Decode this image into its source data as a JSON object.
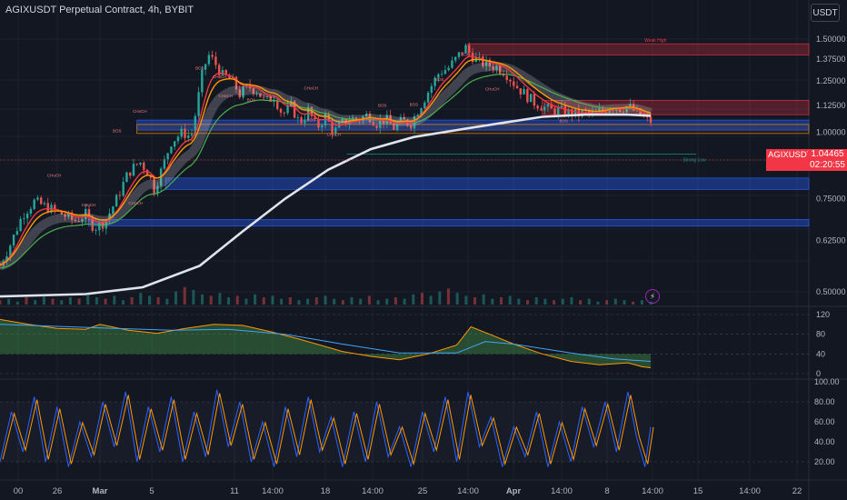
{
  "header": {
    "title": "AGIXUSDT Perpetual Contract, 4h, BYBIT",
    "currency": "USDT"
  },
  "price_badge": {
    "symbol": "AGIXUSDT.P",
    "price": "1.04465",
    "countdown": "02:20:55"
  },
  "colors": {
    "background": "#131722",
    "bull": "#26a69a",
    "bear": "#ef5350",
    "ema_red": "#f23645",
    "ema_orange": "#ff9800",
    "ema_green": "#4caf50",
    "ma_white": "#e0e3eb",
    "zone_red": "#f23645",
    "zone_blue": "#2962ff",
    "zone_orange": "#ff9800"
  },
  "chart_data": {
    "type": "candlestick",
    "interval": "4h",
    "price_axis": {
      "ticks": [
        1.5,
        1.375,
        1.25,
        1.125,
        1.0,
        0.875,
        0.75,
        0.625,
        0.5
      ],
      "tick_labels": [
        "1.50000",
        "1.37500",
        "1.25000",
        "1.12500",
        "1.00000",
        "0.87500",
        "0.75000",
        "0.62500",
        "0.50000"
      ],
      "log_scale": true
    },
    "time_axis": {
      "labels": [
        "00",
        "26",
        "Mar",
        "5",
        "11",
        "14:00",
        "18",
        "14:00",
        "25",
        "14:00",
        "Apr",
        "14:00",
        "8",
        "14:00",
        "15",
        "14:00",
        "22"
      ]
    },
    "price_path": [
      [
        0,
        0.56
      ],
      [
        8,
        0.62
      ],
      [
        16,
        0.7
      ],
      [
        24,
        0.74
      ],
      [
        34,
        0.72
      ],
      [
        44,
        0.7
      ],
      [
        52,
        0.68
      ],
      [
        60,
        0.7
      ],
      [
        66,
        0.66
      ],
      [
        74,
        0.68
      ],
      [
        82,
        0.75
      ],
      [
        90,
        0.84
      ],
      [
        98,
        0.88
      ],
      [
        104,
        0.84
      ],
      [
        108,
        0.78
      ],
      [
        114,
        0.86
      ],
      [
        120,
        0.96
      ],
      [
        128,
        1.0
      ],
      [
        134,
        0.98
      ],
      [
        138,
        1.12
      ],
      [
        142,
        1.3
      ],
      [
        146,
        1.4
      ],
      [
        150,
        1.36
      ],
      [
        156,
        1.28
      ],
      [
        162,
        1.26
      ],
      [
        168,
        1.18
      ],
      [
        174,
        1.22
      ],
      [
        180,
        1.2
      ],
      [
        186,
        1.14
      ],
      [
        192,
        1.17
      ],
      [
        198,
        1.08
      ],
      [
        204,
        1.12
      ],
      [
        210,
        1.04
      ],
      [
        216,
        1.1
      ],
      [
        222,
        1.02
      ],
      [
        228,
        1.07
      ],
      [
        234,
        1.0
      ],
      [
        240,
        1.04
      ],
      [
        246,
        1.06
      ],
      [
        252,
        1.06
      ],
      [
        258,
        1.08
      ],
      [
        264,
        1.04
      ],
      [
        270,
        1.06
      ],
      [
        276,
        1.02
      ],
      [
        282,
        1.05
      ],
      [
        288,
        1.04
      ],
      [
        296,
        1.14
      ],
      [
        302,
        1.22
      ],
      [
        308,
        1.3
      ],
      [
        314,
        1.32
      ],
      [
        320,
        1.38
      ],
      [
        326,
        1.45
      ],
      [
        330,
        1.4
      ],
      [
        336,
        1.36
      ],
      [
        342,
        1.34
      ],
      [
        348,
        1.33
      ],
      [
        354,
        1.3
      ],
      [
        358,
        1.26
      ],
      [
        362,
        1.22
      ],
      [
        368,
        1.18
      ],
      [
        374,
        1.14
      ],
      [
        380,
        1.12
      ],
      [
        386,
        1.1
      ],
      [
        392,
        1.1
      ],
      [
        398,
        1.09
      ],
      [
        404,
        1.08
      ],
      [
        410,
        1.09
      ],
      [
        416,
        1.08
      ],
      [
        422,
        1.1
      ],
      [
        428,
        1.12
      ],
      [
        434,
        1.11
      ],
      [
        440,
        1.12
      ],
      [
        446,
        1.09
      ],
      [
        452,
        1.06
      ],
      [
        456,
        1.05
      ]
    ],
    "moving_average_white": [
      [
        0,
        0.49
      ],
      [
        60,
        0.495
      ],
      [
        100,
        0.51
      ],
      [
        140,
        0.56
      ],
      [
        170,
        0.65
      ],
      [
        200,
        0.75
      ],
      [
        230,
        0.85
      ],
      [
        260,
        0.93
      ],
      [
        290,
        0.98
      ],
      [
        320,
        1.01
      ],
      [
        350,
        1.04
      ],
      [
        380,
        1.07
      ],
      [
        410,
        1.08
      ],
      [
        440,
        1.08
      ],
      [
        456,
        1.075
      ]
    ],
    "zones": [
      {
        "label": "Weak High",
        "top": 1.47,
        "bottom": 1.4,
        "x_from": 328,
        "color": "red"
      },
      {
        "label": "",
        "top": 1.15,
        "bottom": 1.08,
        "x_from": 380,
        "color": "red"
      },
      {
        "label": "",
        "top": 1.055,
        "bottom": 1.01,
        "x_from": 96,
        "color": "blue"
      },
      {
        "label": "",
        "top": 1.035,
        "bottom": 0.995,
        "x_from": 96,
        "color": "orange"
      },
      {
        "label": "",
        "top": 0.82,
        "bottom": 0.78,
        "x_from": 116,
        "color": "blue"
      },
      {
        "label": "",
        "top": 0.685,
        "bottom": 0.665,
        "x_from": 62,
        "color": "blue"
      }
    ],
    "strong_low": {
      "label": "Strong Low",
      "price": 0.91,
      "x_from": 243,
      "x_to": 456
    },
    "structure_labels": [
      {
        "text": "CHoCH",
        "x": 38,
        "price": 0.825
      },
      {
        "text": "CHoCH",
        "x": 62,
        "price": 0.725
      },
      {
        "text": "CHoCH",
        "x": 95,
        "price": 0.73
      },
      {
        "text": "BOS",
        "x": 82,
        "price": 1.0
      },
      {
        "text": "CHoCH",
        "x": 98,
        "price": 1.09
      },
      {
        "text": "BOS",
        "x": 140,
        "price": 1.315
      },
      {
        "text": "CHoCH",
        "x": 154,
        "price": 1.265
      },
      {
        "text": "CHoCH",
        "x": 158,
        "price": 1.165
      },
      {
        "text": "BOS",
        "x": 176,
        "price": 1.145
      },
      {
        "text": "BOS",
        "x": 206,
        "price": 1.12
      },
      {
        "text": "BOS",
        "x": 218,
        "price": 1.05
      },
      {
        "text": "CHoCH",
        "x": 218,
        "price": 1.205
      },
      {
        "text": "CHoCH",
        "x": 234,
        "price": 0.985
      },
      {
        "text": "BOS",
        "x": 268,
        "price": 1.118
      },
      {
        "text": "BOS",
        "x": 290,
        "price": 1.122
      },
      {
        "text": "BOS",
        "x": 308,
        "price": 1.25
      },
      {
        "text": "BOS",
        "x": 326,
        "price": 1.395
      },
      {
        "text": "CHoCH",
        "x": 345,
        "price": 1.2
      },
      {
        "text": "BOS",
        "x": 395,
        "price": 1.045
      }
    ],
    "volume": [
      3,
      4,
      2,
      5,
      3,
      6,
      4,
      3,
      5,
      4,
      7,
      5,
      4,
      6,
      3,
      5,
      8,
      6,
      5,
      4,
      9,
      12,
      10,
      7,
      6,
      8,
      5,
      6,
      4,
      7,
      5,
      6,
      4,
      5,
      3,
      4,
      5,
      6,
      4,
      3,
      5,
      4,
      6,
      3,
      4,
      5,
      4,
      7,
      8,
      6,
      9,
      11,
      8,
      6,
      5,
      7,
      4,
      5,
      6,
      4,
      3,
      5,
      4,
      3,
      4,
      5,
      3,
      4,
      2,
      3,
      4,
      3,
      2,
      3,
      2
    ],
    "rsi_panel": {
      "tick_labels": [
        "120",
        "80",
        "40",
        "0"
      ],
      "levels": [
        120,
        80,
        40,
        0
      ],
      "series": [
        [
          0,
          110
        ],
        [
          20,
          100
        ],
        [
          40,
          92
        ],
        [
          60,
          90
        ],
        [
          70,
          100
        ],
        [
          90,
          88
        ],
        [
          110,
          82
        ],
        [
          130,
          92
        ],
        [
          150,
          100
        ],
        [
          170,
          98
        ],
        [
          190,
          85
        ],
        [
          210,
          70
        ],
        [
          240,
          45
        ],
        [
          260,
          35
        ],
        [
          280,
          28
        ],
        [
          300,
          40
        ],
        [
          320,
          58
        ],
        [
          330,
          95
        ],
        [
          345,
          78
        ],
        [
          360,
          60
        ],
        [
          380,
          40
        ],
        [
          400,
          25
        ],
        [
          420,
          18
        ],
        [
          440,
          22
        ],
        [
          450,
          14
        ],
        [
          456,
          12
        ]
      ],
      "signal": [
        [
          0,
          100
        ],
        [
          40,
          96
        ],
        [
          80,
          92
        ],
        [
          120,
          88
        ],
        [
          160,
          90
        ],
        [
          200,
          80
        ],
        [
          240,
          60
        ],
        [
          280,
          42
        ],
        [
          320,
          42
        ],
        [
          340,
          65
        ],
        [
          360,
          60
        ],
        [
          400,
          42
        ],
        [
          430,
          30
        ],
        [
          456,
          25
        ]
      ]
    },
    "stoch_panel": {
      "tick_labels": [
        "100.00",
        "80.00",
        "60.00",
        "40.00",
        "20.00"
      ],
      "levels": [
        80,
        20
      ],
      "k_series": [
        [
          0,
          20
        ],
        [
          8,
          70
        ],
        [
          16,
          30
        ],
        [
          24,
          85
        ],
        [
          32,
          20
        ],
        [
          40,
          75
        ],
        [
          48,
          15
        ],
        [
          56,
          60
        ],
        [
          64,
          25
        ],
        [
          72,
          80
        ],
        [
          80,
          35
        ],
        [
          88,
          90
        ],
        [
          96,
          20
        ],
        [
          104,
          75
        ],
        [
          112,
          30
        ],
        [
          120,
          85
        ],
        [
          128,
          20
        ],
        [
          136,
          70
        ],
        [
          144,
          25
        ],
        [
          152,
          92
        ],
        [
          160,
          35
        ],
        [
          168,
          80
        ],
        [
          176,
          20
        ],
        [
          184,
          60
        ],
        [
          192,
          15
        ],
        [
          200,
          75
        ],
        [
          208,
          25
        ],
        [
          216,
          85
        ],
        [
          224,
          30
        ],
        [
          232,
          65
        ],
        [
          240,
          15
        ],
        [
          248,
          70
        ],
        [
          256,
          20
        ],
        [
          264,
          80
        ],
        [
          272,
          25
        ],
        [
          280,
          55
        ],
        [
          288,
          15
        ],
        [
          296,
          70
        ],
        [
          304,
          30
        ],
        [
          312,
          85
        ],
        [
          320,
          20
        ],
        [
          328,
          90
        ],
        [
          336,
          35
        ],
        [
          344,
          65
        ],
        [
          352,
          15
        ],
        [
          360,
          55
        ],
        [
          368,
          25
        ],
        [
          376,
          70
        ],
        [
          384,
          15
        ],
        [
          392,
          60
        ],
        [
          400,
          20
        ],
        [
          408,
          75
        ],
        [
          416,
          35
        ],
        [
          424,
          80
        ],
        [
          432,
          30
        ],
        [
          440,
          90
        ],
        [
          446,
          45
        ],
        [
          452,
          15
        ],
        [
          456,
          55
        ]
      ]
    }
  }
}
